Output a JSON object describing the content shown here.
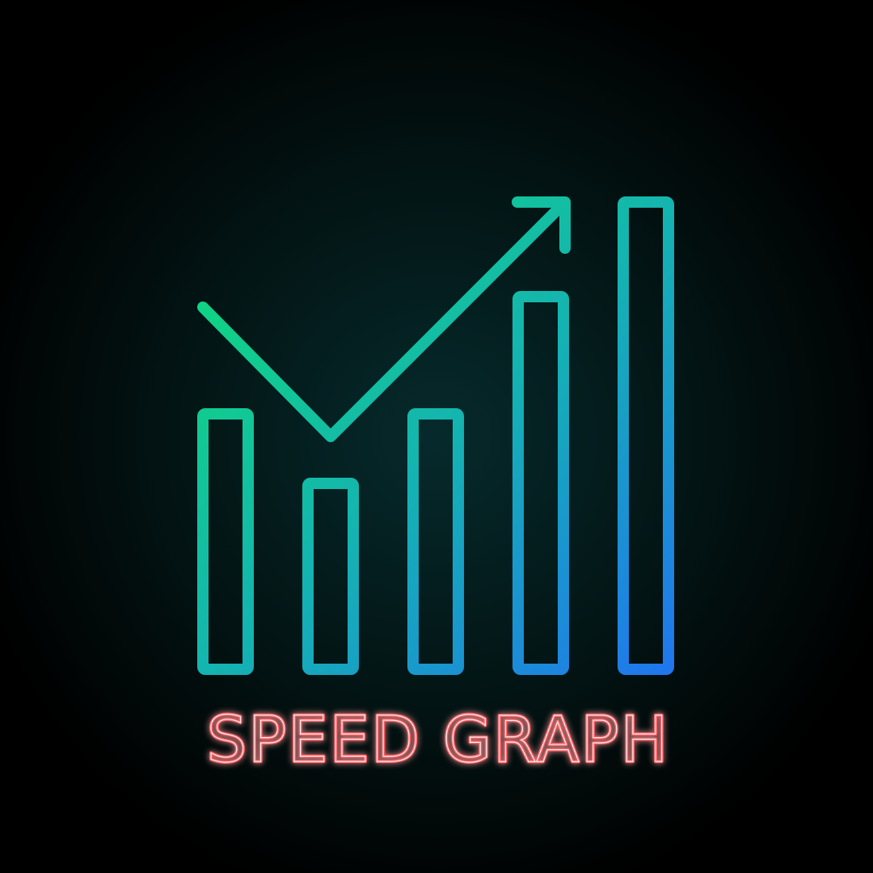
{
  "title": "SPEED GRAPH"
}
